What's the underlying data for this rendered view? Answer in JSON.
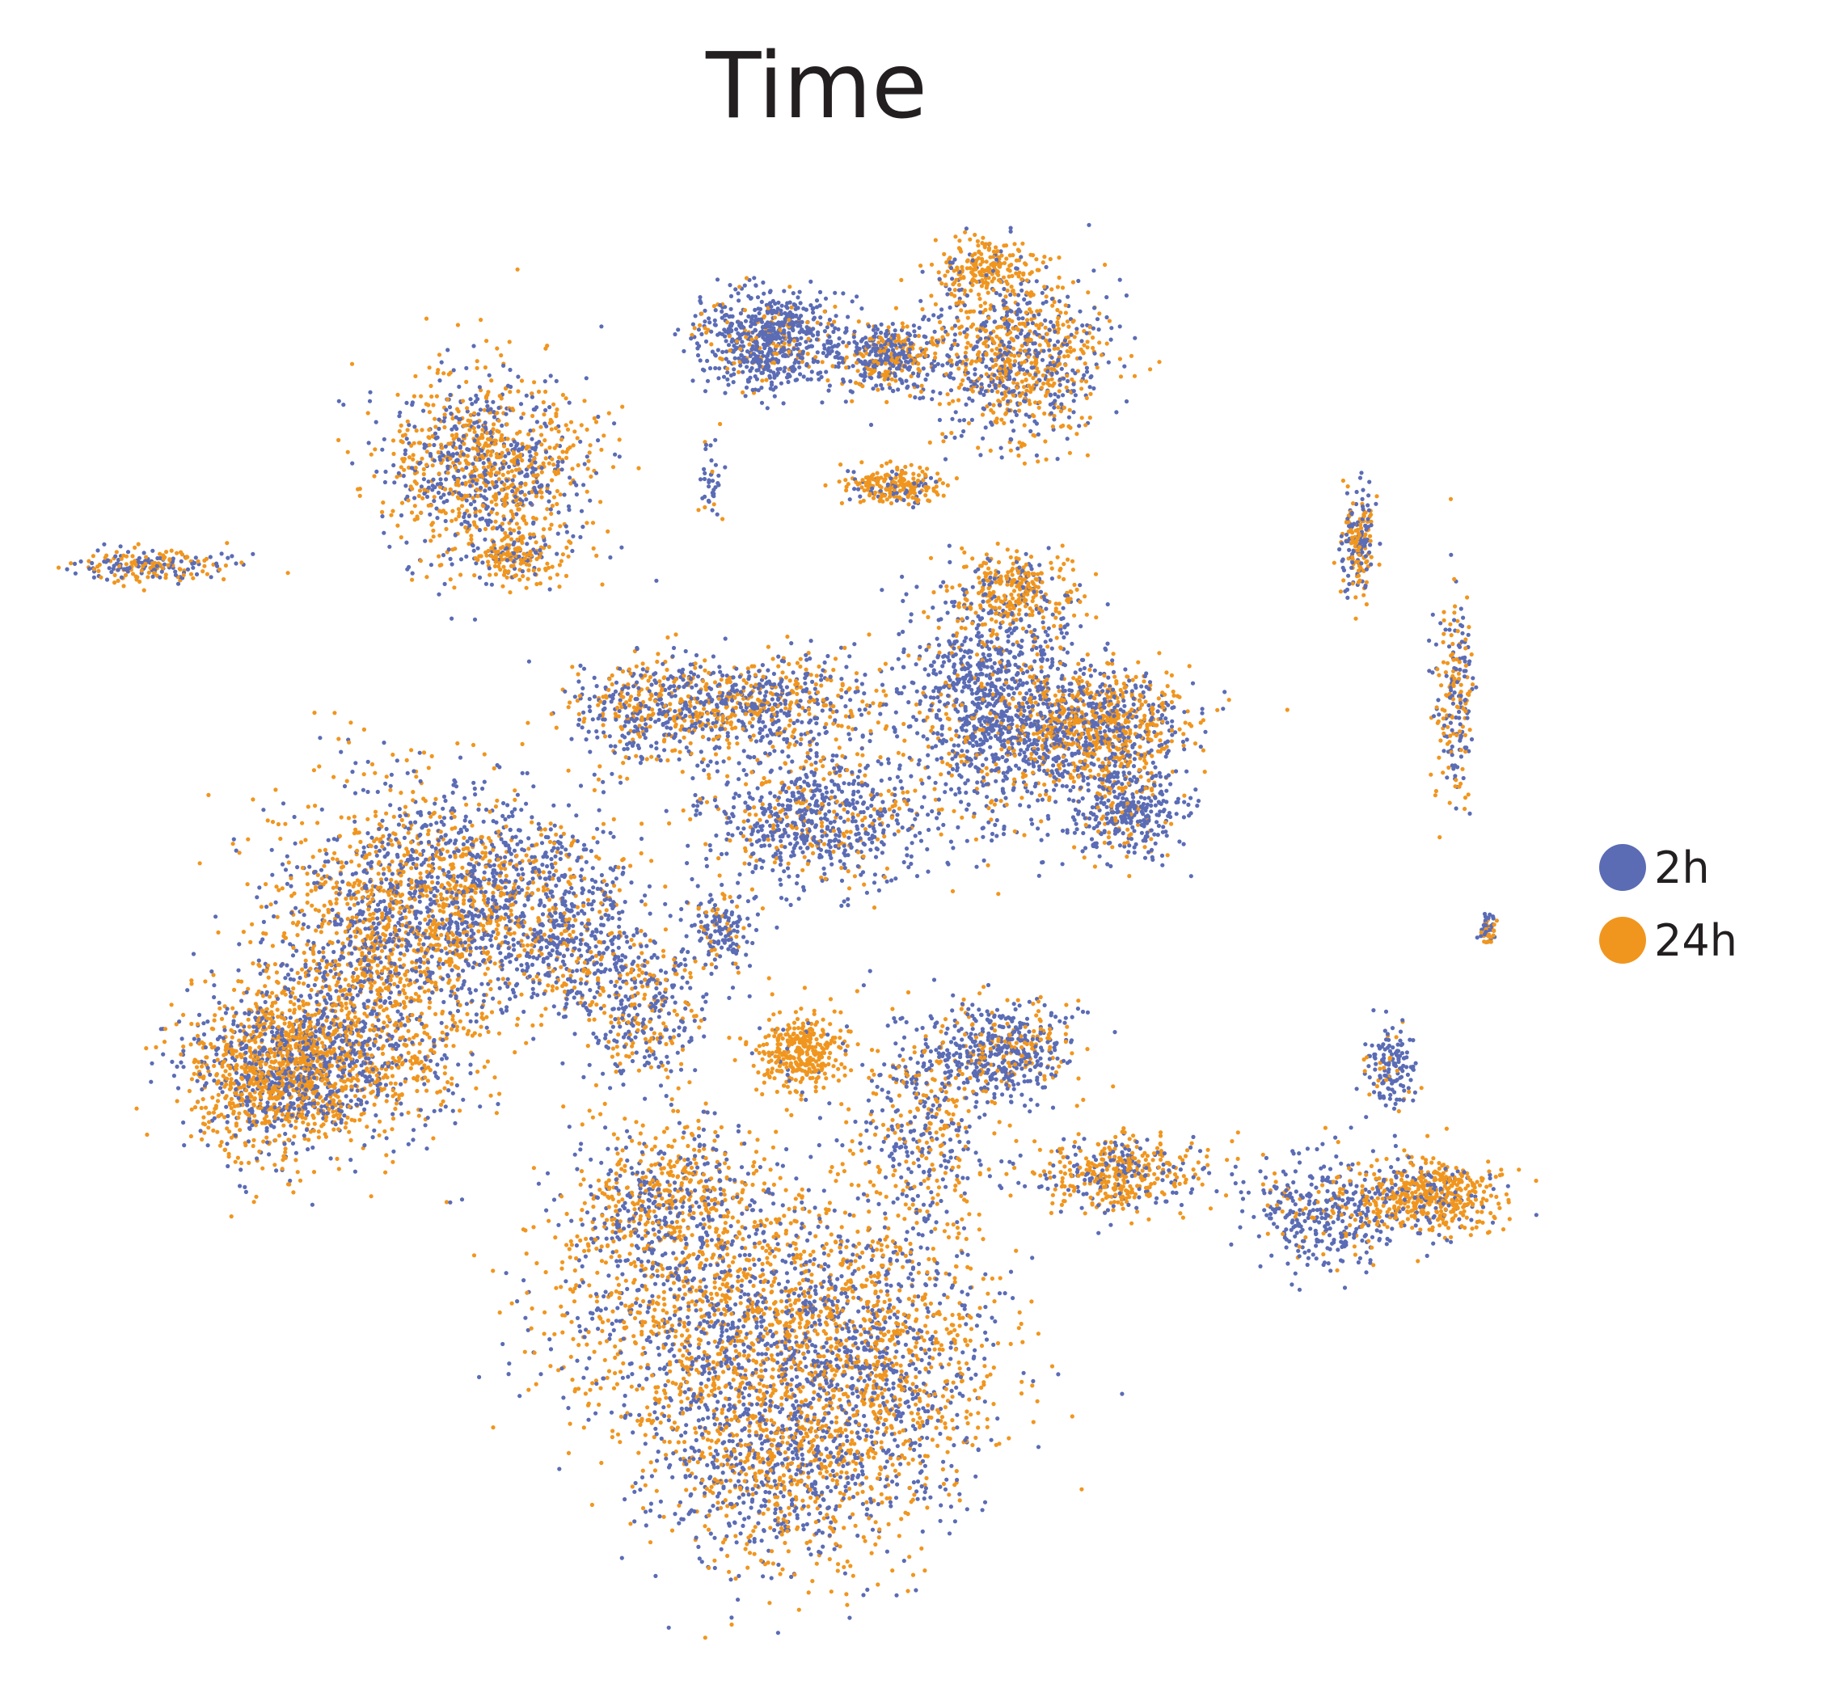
{
  "chart_data": {
    "type": "scatter",
    "title": "Time",
    "xlabel": "",
    "ylabel": "",
    "axes_visible": false,
    "grid": false,
    "legend_placement": "right",
    "series": [
      {
        "name": "2h",
        "color": "#5b6cb5"
      },
      {
        "name": "24h",
        "color": "#f0961f"
      }
    ]
  }
}
